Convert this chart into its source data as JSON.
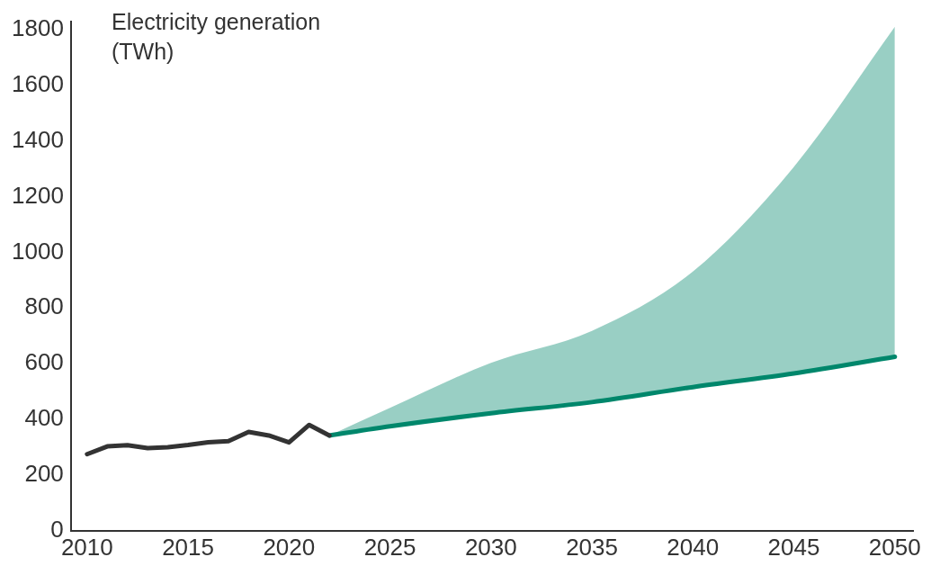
{
  "chart_data": {
    "type": "line",
    "ylabel": "Electricity generation (TWh)",
    "xlim": [
      2009.2,
      2050.9
    ],
    "ylim": [
      0,
      1830
    ],
    "xticks": [
      2010,
      2015,
      2020,
      2025,
      2030,
      2035,
      2040,
      2045,
      2050
    ],
    "yticks": [
      0,
      200,
      400,
      600,
      800,
      1000,
      1200,
      1400,
      1600,
      1800
    ],
    "marker": "none",
    "line_style": "solid",
    "series": [
      {
        "color": "#333333",
        "x": [
          2010,
          2011,
          2012,
          2013,
          2014,
          2015,
          2016,
          2017,
          2018,
          2019,
          2020,
          2021,
          2022
        ],
        "values": [
          275,
          303,
          307,
          297,
          300,
          308,
          318,
          322,
          355,
          342,
          317,
          380,
          342
        ]
      },
      {
        "color": "#00876c",
        "x": [
          2022,
          2025,
          2030,
          2035,
          2040,
          2045,
          2050
        ],
        "values": [
          342,
          375,
          422,
          462,
          516,
          565,
          625
        ],
        "lower": [
          342,
          375,
          422,
          462,
          516,
          565,
          625
        ],
        "upper": [
          342,
          441,
          603,
          718,
          931,
          1307,
          1810
        ]
      }
    ]
  }
}
